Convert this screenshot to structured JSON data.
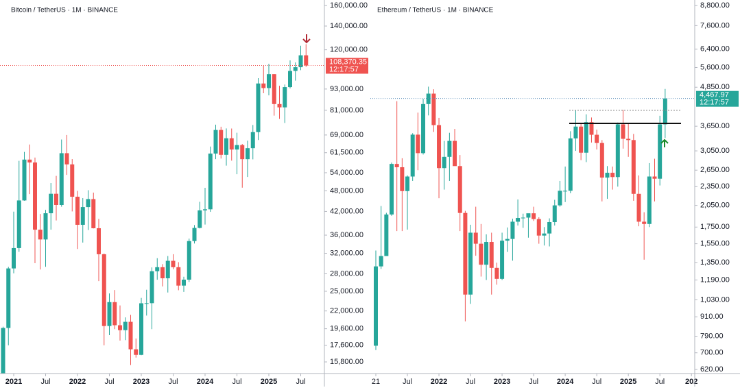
{
  "chart_data": [
    {
      "type": "candlestick",
      "title": "Bitcoin / TetherUS · 1M · BINANCE",
      "log_scale": true,
      "up_color": "#26a69a",
      "down_color": "#ef5350",
      "x": [
        "2020-11",
        "2020-12",
        "2021-01",
        "2021-02",
        "2021-03",
        "2021-04",
        "2021-05",
        "2021-06",
        "2021-07",
        "2021-08",
        "2021-09",
        "2021-10",
        "2021-11",
        "2021-12",
        "2022-01",
        "2022-02",
        "2022-03",
        "2022-04",
        "2022-05",
        "2022-06",
        "2022-07",
        "2022-08",
        "2022-09",
        "2022-10",
        "2022-11",
        "2022-12",
        "2023-01",
        "2023-02",
        "2023-03",
        "2023-04",
        "2023-05",
        "2023-06",
        "2023-07",
        "2023-08",
        "2023-09",
        "2023-10",
        "2023-11",
        "2023-12",
        "2024-01",
        "2024-02",
        "2024-03",
        "2024-04",
        "2024-05",
        "2024-06",
        "2024-07",
        "2024-08",
        "2024-09",
        "2024-10",
        "2024-11",
        "2024-12",
        "2025-01",
        "2025-02",
        "2025-03",
        "2025-04",
        "2025-05",
        "2025-06",
        "2025-07",
        "2025-08"
      ],
      "open": [
        13800,
        19700,
        29000,
        33100,
        45100,
        58800,
        57700,
        37300,
        35000,
        41500,
        47100,
        43800,
        61300,
        57000,
        46200,
        38500,
        43200,
        45500,
        37650,
        31800,
        19950,
        23300,
        20050,
        19420,
        20500,
        17150,
        16540,
        23125,
        23140,
        28480,
        29230,
        27200,
        30470,
        29230,
        25940,
        26960,
        34640,
        37720,
        42280,
        42580,
        61130,
        71280,
        60670,
        67540,
        62770,
        64620,
        58970,
        63330,
        70290,
        96400,
        93580,
        102430,
        84350,
        82550,
        94170,
        104600,
        107140,
        115760
      ],
      "high": [
        19860,
        29300,
        41950,
        58350,
        61800,
        64850,
        59600,
        41300,
        42400,
        50500,
        52900,
        67000,
        69000,
        59000,
        47990,
        45800,
        48200,
        47450,
        40000,
        31950,
        24650,
        25200,
        22800,
        21100,
        21450,
        18400,
        23950,
        25250,
        29200,
        31000,
        29820,
        31430,
        31800,
        30200,
        27480,
        35200,
        38430,
        44700,
        48970,
        64000,
        73780,
        72800,
        71980,
        71950,
        70000,
        65100,
        66500,
        73620,
        99800,
        108350,
        109590,
        102500,
        95000,
        95750,
        111980,
        110530,
        123200,
        124470
      ],
      "low": [
        13200,
        17600,
        28100,
        32300,
        45000,
        47000,
        30000,
        28800,
        29300,
        37300,
        39600,
        43300,
        53250,
        42000,
        32900,
        34300,
        37200,
        37600,
        26700,
        17600,
        18800,
        19550,
        18150,
        18200,
        15480,
        16250,
        16500,
        21350,
        19550,
        26950,
        25800,
        24800,
        28850,
        25170,
        24900,
        26560,
        34100,
        37600,
        38550,
        41880,
        59000,
        59200,
        56550,
        58400,
        53500,
        49000,
        52550,
        58900,
        66800,
        90500,
        89250,
        78250,
        76600,
        74600,
        93350,
        98200,
        105100,
        107350
      ],
      "close": [
        19700,
        29000,
        33100,
        45100,
        58800,
        57700,
        37300,
        35000,
        41500,
        47100,
        43800,
        61300,
        57000,
        46200,
        38500,
        43200,
        45500,
        37650,
        31800,
        19950,
        23300,
        20050,
        19420,
        20500,
        17150,
        16540,
        23125,
        23140,
        28480,
        29230,
        27200,
        30470,
        29230,
        25940,
        26960,
        34640,
        37720,
        42280,
        42580,
        61130,
        71280,
        60670,
        67540,
        62770,
        64620,
        58970,
        63330,
        70290,
        96400,
        93580,
        102430,
        84350,
        82550,
        94170,
        104600,
        107140,
        115760,
        108370.35
      ],
      "last_label": "108,370.35",
      "countdown": "12:17:57",
      "ylim": [
        14650,
        165800
      ],
      "yticks": [
        {
          "value": 15800,
          "label": "15,800.00"
        },
        {
          "value": 17600,
          "label": "17,600.00"
        },
        {
          "value": 19600,
          "label": "19,600.00"
        },
        {
          "value": 22000,
          "label": "22,000.00"
        },
        {
          "value": 25000,
          "label": "25,000.00"
        },
        {
          "value": 28000,
          "label": "28,000.00"
        },
        {
          "value": 32000,
          "label": "32,000.00"
        },
        {
          "value": 36000,
          "label": "36,000.00"
        },
        {
          "value": 42000,
          "label": "42,000.00"
        },
        {
          "value": 48000,
          "label": "48,000.00"
        },
        {
          "value": 54000,
          "label": "54,000.00"
        },
        {
          "value": 61500,
          "label": "61,500.00"
        },
        {
          "value": 69000,
          "label": "69,000.00"
        },
        {
          "value": 81000,
          "label": "81,000.00"
        },
        {
          "value": 93000,
          "label": "93,000.00"
        },
        {
          "value": 120000,
          "label": "120,000.00"
        },
        {
          "value": 140000,
          "label": "140,000.00"
        },
        {
          "value": 160000,
          "label": "160,000.00"
        }
      ],
      "xticks": [
        {
          "value": "2021-01",
          "label": "2021"
        },
        {
          "value": "2021-07",
          "label": "Jul"
        },
        {
          "value": "2022-01",
          "label": "2022"
        },
        {
          "value": "2022-07",
          "label": "Jul"
        },
        {
          "value": "2023-01",
          "label": "2023"
        },
        {
          "value": "2023-07",
          "label": "Jul"
        },
        {
          "value": "2024-01",
          "label": "2024"
        },
        {
          "value": "2024-07",
          "label": "Jul"
        },
        {
          "value": "2025-01",
          "label": "2025"
        },
        {
          "value": "2025-07",
          "label": "Jul"
        }
      ]
    },
    {
      "type": "candlestick",
      "title": "Ethereum / TetherUS · 1M · BINANCE",
      "log_scale": true,
      "up_color": "#26a69a",
      "down_color": "#ef5350",
      "x": [
        "2021-01",
        "2021-02",
        "2021-03",
        "2021-04",
        "2021-05",
        "2021-06",
        "2021-07",
        "2021-08",
        "2021-09",
        "2021-10",
        "2021-11",
        "2021-12",
        "2022-01",
        "2022-02",
        "2022-03",
        "2022-04",
        "2022-05",
        "2022-06",
        "2022-07",
        "2022-08",
        "2022-09",
        "2022-10",
        "2022-11",
        "2022-12",
        "2023-01",
        "2023-02",
        "2023-03",
        "2023-04",
        "2023-05",
        "2023-06",
        "2023-07",
        "2023-08",
        "2023-09",
        "2023-10",
        "2023-11",
        "2023-12",
        "2024-01",
        "2024-02",
        "2024-03",
        "2024-04",
        "2024-05",
        "2024-06",
        "2024-07",
        "2024-08",
        "2024-09",
        "2024-10",
        "2024-11",
        "2024-12",
        "2025-01",
        "2025-02",
        "2025-03",
        "2025-04",
        "2025-05",
        "2025-06",
        "2025-07",
        "2025-08"
      ],
      "open": [
        737,
        1314,
        1417,
        1918,
        2773,
        2707,
        2275,
        2530,
        3433,
        3000,
        4290,
        4630,
        3680,
        2690,
        2920,
        3280,
        2730,
        1940,
        1070,
        1680,
        1550,
        1330,
        1570,
        1300,
        1200,
        1585,
        1605,
        1820,
        1870,
        1875,
        1935,
        1855,
        1645,
        1670,
        1815,
        2050,
        2280,
        2280,
        3340,
        3640,
        3010,
        3760,
        3430,
        3230,
        2510,
        2600,
        2520,
        3700,
        3330,
        3300,
        2230,
        1820,
        1790,
        2530,
        2490,
        3700
      ],
      "high": [
        1475,
        2040,
        1942,
        2800,
        4380,
        2890,
        2550,
        3470,
        4030,
        4460,
        4870,
        4780,
        3880,
        3280,
        3480,
        3580,
        2960,
        1970,
        1780,
        2030,
        1790,
        1660,
        1680,
        1350,
        1680,
        1745,
        1860,
        2140,
        1930,
        1930,
        2030,
        1880,
        1750,
        1865,
        2135,
        2450,
        2720,
        3520,
        4090,
        3730,
        3980,
        3890,
        3560,
        3300,
        2730,
        2720,
        3750,
        4110,
        3740,
        3450,
        2550,
        1950,
        2790,
        2880,
        3940,
        4790
      ],
      "low": [
        714,
        1290,
        1442,
        1900,
        1700,
        1700,
        1718,
        2450,
        2650,
        2970,
        3950,
        3500,
        2160,
        2300,
        2450,
        2790,
        1700,
        880,
        1000,
        1420,
        1220,
        1190,
        1070,
        1150,
        1190,
        1460,
        1370,
        1770,
        1740,
        1620,
        1830,
        1550,
        1530,
        1520,
        1770,
        2030,
        2100,
        2240,
        3050,
        2850,
        2810,
        3240,
        3080,
        2110,
        2150,
        2300,
        2350,
        3100,
        2920,
        2120,
        1760,
        1380,
        1750,
        2110,
        2370,
        3350
      ],
      "close": [
        1314,
        1417,
        1918,
        2773,
        2707,
        2275,
        2530,
        3433,
        3000,
        4290,
        4630,
        3680,
        2690,
        2920,
        3280,
        2730,
        1940,
        1070,
        1680,
        1550,
        1330,
        1570,
        1300,
        1200,
        1585,
        1605,
        1820,
        1870,
        1875,
        1935,
        1855,
        1645,
        1670,
        1815,
        2050,
        2280,
        2280,
        3340,
        3640,
        3010,
        3760,
        3430,
        3230,
        2510,
        2600,
        2520,
        3700,
        3330,
        3300,
        2230,
        1820,
        1790,
        2530,
        2490,
        3700,
        4467.97
      ],
      "last_label": "4,467.97",
      "countdown": "12:17:57",
      "ylim": [
        601.7,
        9159
      ],
      "yticks": [
        {
          "value": 620,
          "label": "620.00"
        },
        {
          "value": 700,
          "label": "700.00"
        },
        {
          "value": 790,
          "label": "790.00"
        },
        {
          "value": 910,
          "label": "910.00"
        },
        {
          "value": 1030,
          "label": "1,030.00"
        },
        {
          "value": 1190,
          "label": "1,190.00"
        },
        {
          "value": 1350,
          "label": "1,350.00"
        },
        {
          "value": 1550,
          "label": "1,550.00"
        },
        {
          "value": 1750,
          "label": "1,750.00"
        },
        {
          "value": 2050,
          "label": "2,050.00"
        },
        {
          "value": 2350,
          "label": "2,350.00"
        },
        {
          "value": 2650,
          "label": "2,650.00"
        },
        {
          "value": 3050,
          "label": "3,050.00"
        },
        {
          "value": 3650,
          "label": "3,650.00"
        },
        {
          "value": 4850,
          "label": "4,850.00"
        },
        {
          "value": 5600,
          "label": "5,600.00"
        },
        {
          "value": 6400,
          "label": "6,400.00"
        },
        {
          "value": 7600,
          "label": "7,600.00"
        },
        {
          "value": 8800,
          "label": "8,800.00"
        }
      ],
      "xticks": [
        {
          "value": "2021-01",
          "label": "21"
        },
        {
          "value": "2021-07",
          "label": "Jul"
        },
        {
          "value": "2022-01",
          "label": "2022"
        },
        {
          "value": "2022-07",
          "label": "Jul"
        },
        {
          "value": "2023-01",
          "label": "2023"
        },
        {
          "value": "2023-07",
          "label": "Jul"
        },
        {
          "value": "2024-01",
          "label": "2024"
        },
        {
          "value": "2024-07",
          "label": "Jul"
        },
        {
          "value": "2025-01",
          "label": "2025"
        },
        {
          "value": "2025-07",
          "label": "Jul"
        },
        {
          "value": "2026-01",
          "label": "202"
        }
      ]
    }
  ]
}
